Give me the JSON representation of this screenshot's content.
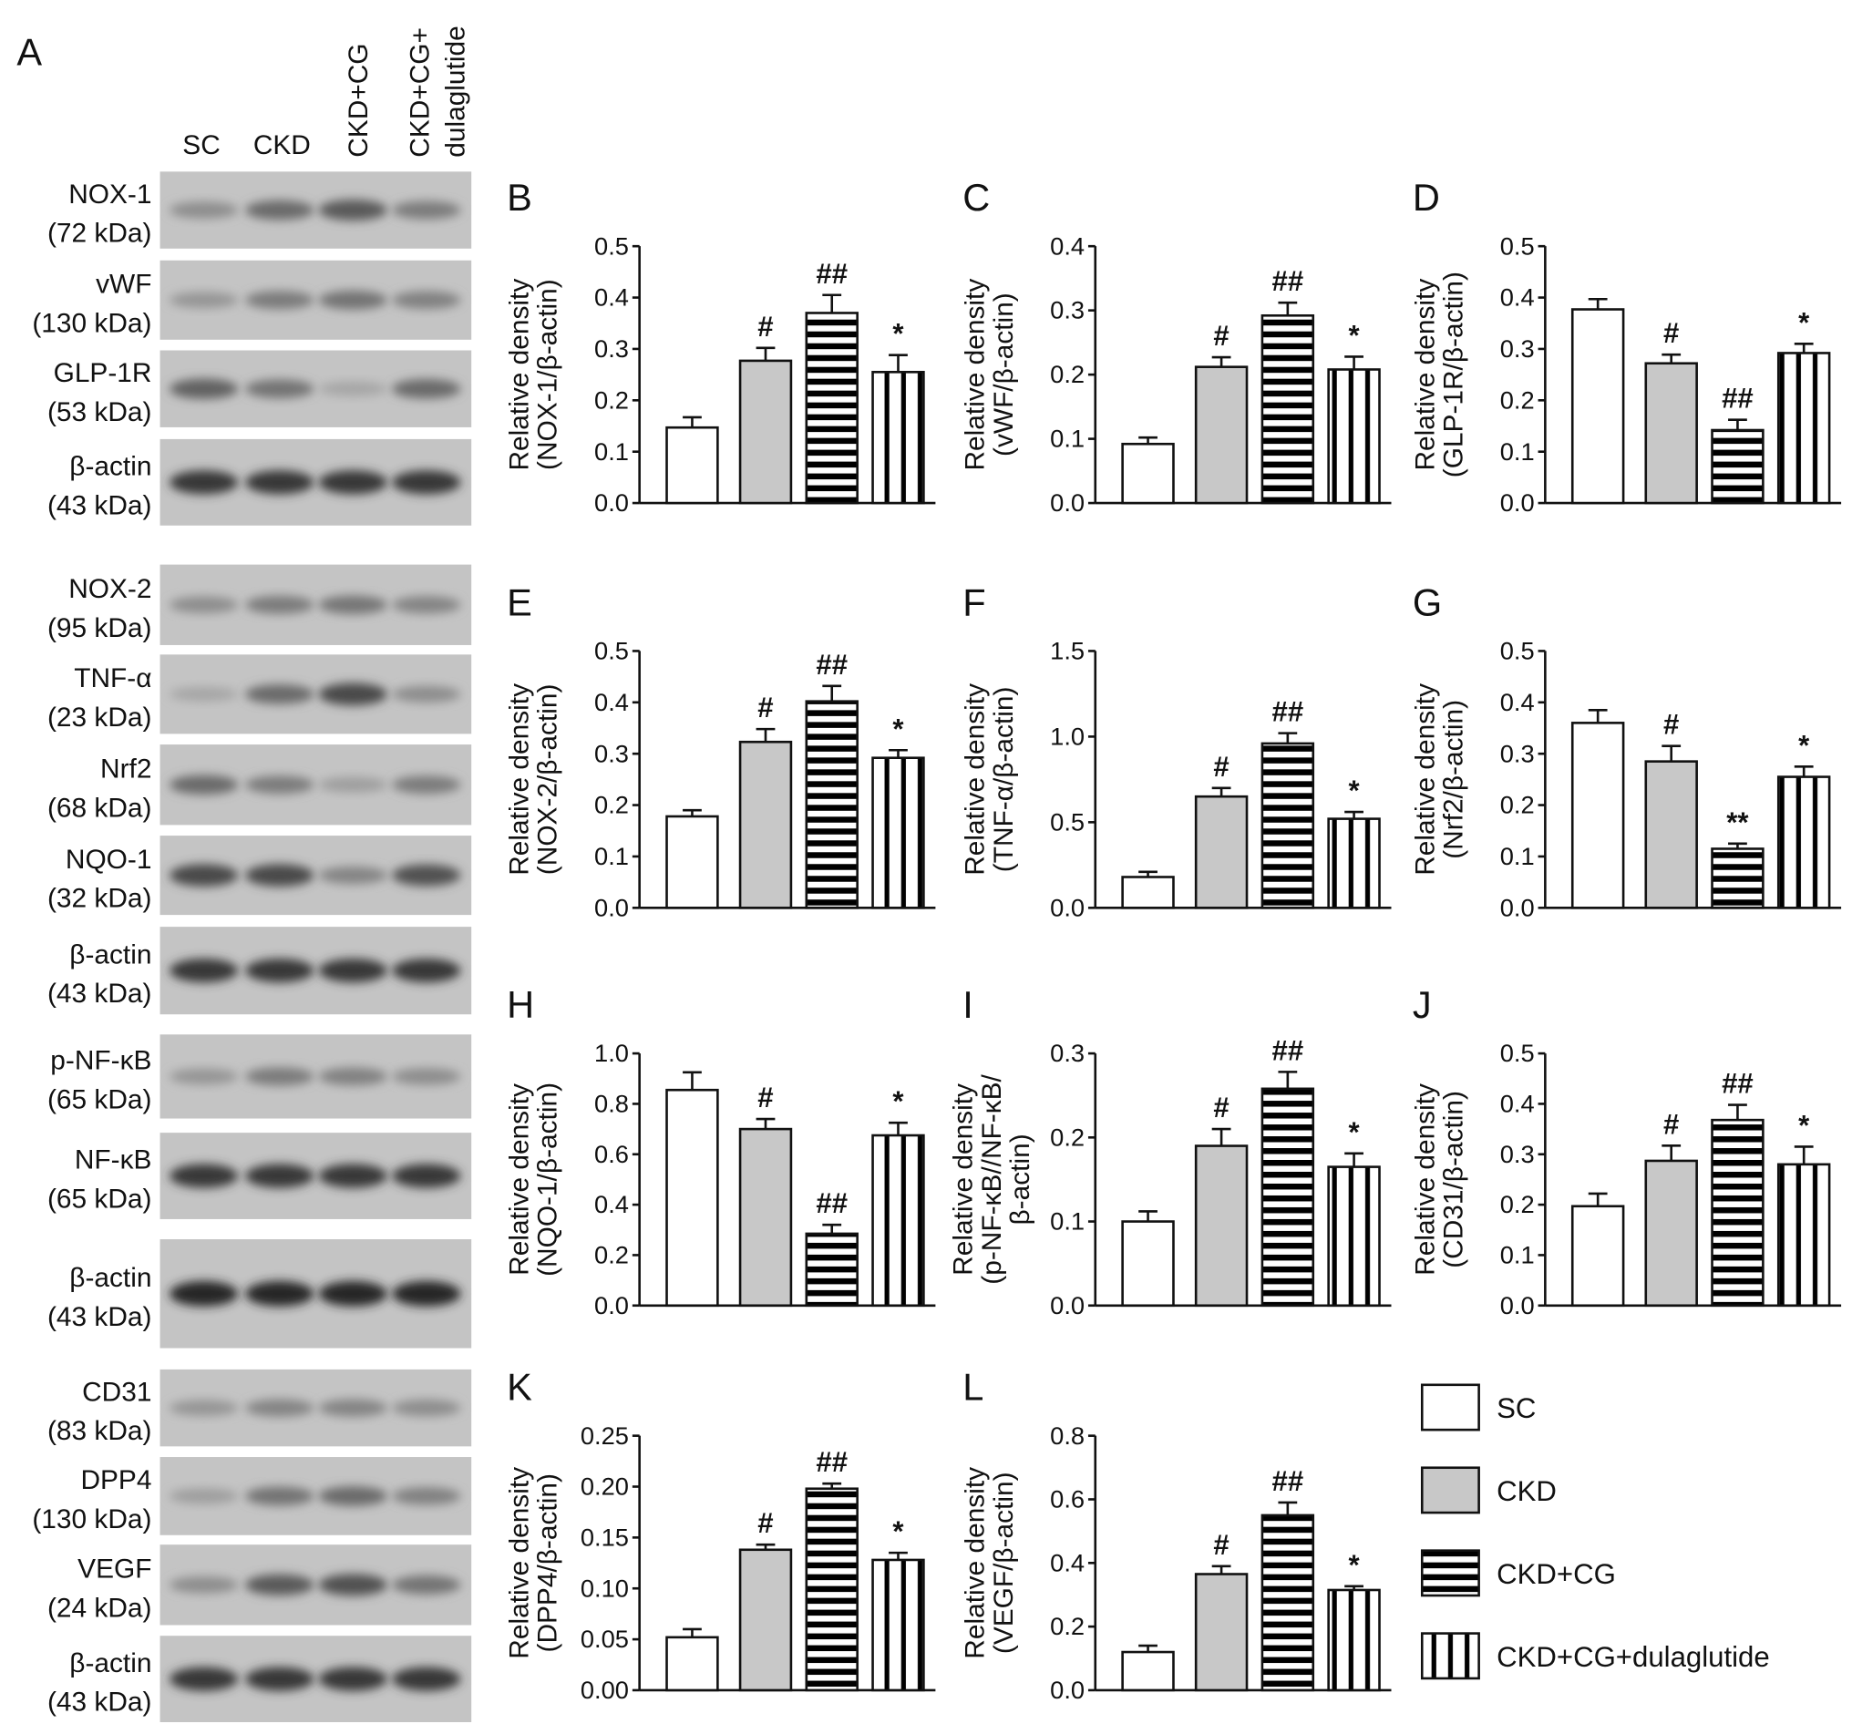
{
  "figure_letter_blot": "A",
  "lanes": [
    "SC",
    "CKD",
    "CKD+CG",
    "CKD+CG+",
    "dulaglutide"
  ],
  "blots": [
    {
      "name": "NOX-1",
      "kda": "(72 kDa)",
      "band_intensity": [
        0.35,
        0.55,
        0.65,
        0.45
      ]
    },
    {
      "name": "vWF",
      "kda": "(130 kDa)",
      "band_intensity": [
        0.3,
        0.45,
        0.5,
        0.42
      ]
    },
    {
      "name": "GLP-1R",
      "kda": "(53 kDa)",
      "band_intensity": [
        0.6,
        0.5,
        0.2,
        0.55
      ]
    },
    {
      "name": "β-actin",
      "kda": "(43 kDa)",
      "band_intensity": [
        0.85,
        0.85,
        0.85,
        0.85
      ]
    },
    {
      "name": "NOX-2",
      "kda": "(95 kDa)",
      "band_intensity": [
        0.35,
        0.45,
        0.48,
        0.4
      ]
    },
    {
      "name": "TNF-α",
      "kda": "(23 kDa)",
      "band_intensity": [
        0.2,
        0.55,
        0.75,
        0.35
      ]
    },
    {
      "name": "Nrf2",
      "kda": "(68 kDa)",
      "band_intensity": [
        0.55,
        0.45,
        0.25,
        0.45
      ]
    },
    {
      "name": "NQO-1",
      "kda": "(32 kDa)",
      "band_intensity": [
        0.75,
        0.75,
        0.4,
        0.7
      ]
    },
    {
      "name": "β-actin",
      "kda": "(43 kDa)",
      "band_intensity": [
        0.85,
        0.85,
        0.85,
        0.85
      ]
    },
    {
      "name": "p-NF-κB",
      "kda": "(65 kDa)",
      "band_intensity": [
        0.3,
        0.45,
        0.42,
        0.35
      ]
    },
    {
      "name": "NF-κB",
      "kda": "(65 kDa)",
      "band_intensity": [
        0.85,
        0.85,
        0.85,
        0.85
      ]
    },
    {
      "name": "β-actin",
      "kda": "(43 kDa)",
      "band_intensity": [
        0.95,
        0.95,
        0.95,
        0.95
      ]
    },
    {
      "name": "CD31",
      "kda": "(83 kDa)",
      "band_intensity": [
        0.3,
        0.4,
        0.4,
        0.35
      ]
    },
    {
      "name": "DPP4",
      "kda": "(130 kDa)",
      "band_intensity": [
        0.25,
        0.5,
        0.55,
        0.42
      ]
    },
    {
      "name": "VEGF",
      "kda": "(24 kDa)",
      "band_intensity": [
        0.35,
        0.65,
        0.7,
        0.5
      ]
    },
    {
      "name": "β-actin",
      "kda": "(43 kDa)",
      "band_intensity": [
        0.85,
        0.85,
        0.85,
        0.85
      ]
    }
  ],
  "legend": [
    {
      "label": "SC",
      "fill": "white"
    },
    {
      "label": "CKD",
      "fill": "gray"
    },
    {
      "label": "CKD+CG",
      "fill": "horizontal-stripes"
    },
    {
      "label": "CKD+CG+dulaglutide",
      "fill": "vertical-stripes"
    }
  ],
  "colors": {
    "ckd_fill": "#c8c8c8",
    "blot_background": "#c4c4c4",
    "ink": "#111111"
  },
  "chart_data": [
    {
      "panel": "B",
      "type": "bar",
      "categories": [
        "SC",
        "CKD",
        "CKD+CG",
        "CKD+CG+dulaglutide"
      ],
      "ylabel": [
        "Relative density",
        "(NOX-1/β-actin)"
      ],
      "ylim": [
        0,
        0.5
      ],
      "ytick_step": 0.1,
      "ytick_decimals": 1,
      "values": [
        0.147,
        0.277,
        0.37,
        0.255
      ],
      "errors": [
        0.02,
        0.025,
        0.035,
        0.033
      ],
      "significance": [
        "",
        "#",
        "##",
        "*"
      ]
    },
    {
      "panel": "C",
      "type": "bar",
      "categories": [
        "SC",
        "CKD",
        "CKD+CG",
        "CKD+CG+dulaglutide"
      ],
      "ylabel": [
        "Relative density",
        "(vWF/β-actin)"
      ],
      "ylim": [
        0,
        0.4
      ],
      "ytick_step": 0.1,
      "ytick_decimals": 1,
      "values": [
        0.092,
        0.212,
        0.292,
        0.208
      ],
      "errors": [
        0.01,
        0.015,
        0.02,
        0.02
      ],
      "significance": [
        "",
        "#",
        "##",
        "*"
      ]
    },
    {
      "panel": "D",
      "type": "bar",
      "categories": [
        "SC",
        "CKD",
        "CKD+CG",
        "CKD+CG+dulaglutide"
      ],
      "ylabel": [
        "Relative density",
        "(GLP-1R/β-actin)"
      ],
      "ylim": [
        0,
        0.5
      ],
      "ytick_step": 0.1,
      "ytick_decimals": 1,
      "values": [
        0.377,
        0.272,
        0.142,
        0.292
      ],
      "errors": [
        0.02,
        0.017,
        0.02,
        0.018
      ],
      "significance": [
        "",
        "#",
        "##",
        "*"
      ]
    },
    {
      "panel": "E",
      "type": "bar",
      "categories": [
        "SC",
        "CKD",
        "CKD+CG",
        "CKD+CG+dulaglutide"
      ],
      "ylabel": [
        "Relative density",
        "(NOX-2/β-actin)"
      ],
      "ylim": [
        0,
        0.5
      ],
      "ytick_step": 0.1,
      "ytick_decimals": 1,
      "values": [
        0.178,
        0.323,
        0.402,
        0.292
      ],
      "errors": [
        0.012,
        0.025,
        0.03,
        0.015
      ],
      "significance": [
        "",
        "#",
        "##",
        "*"
      ]
    },
    {
      "panel": "F",
      "type": "bar",
      "categories": [
        "SC",
        "CKD",
        "CKD+CG",
        "CKD+CG+dulaglutide"
      ],
      "ylabel": [
        "Relative density",
        "(TNF-α/β-actin)"
      ],
      "ylim": [
        0,
        1.5
      ],
      "ytick_step": 0.5,
      "ytick_decimals": 1,
      "values": [
        0.18,
        0.65,
        0.96,
        0.52
      ],
      "errors": [
        0.03,
        0.05,
        0.06,
        0.04
      ],
      "significance": [
        "",
        "#",
        "##",
        "*"
      ]
    },
    {
      "panel": "G",
      "type": "bar",
      "categories": [
        "SC",
        "CKD",
        "CKD+CG",
        "CKD+CG+dulaglutide"
      ],
      "ylabel": [
        "Relative density",
        "(Nrf2/β-actin)"
      ],
      "ylim": [
        0,
        0.5
      ],
      "ytick_step": 0.1,
      "ytick_decimals": 1,
      "values": [
        0.36,
        0.285,
        0.115,
        0.255
      ],
      "errors": [
        0.025,
        0.03,
        0.01,
        0.02
      ],
      "significance": [
        "",
        "#",
        "**",
        "*"
      ]
    },
    {
      "panel": "H",
      "type": "bar",
      "categories": [
        "SC",
        "CKD",
        "CKD+CG",
        "CKD+CG+dulaglutide"
      ],
      "ylabel": [
        "Relative density",
        "(NQO-1/β-actin)"
      ],
      "ylim": [
        0,
        1.0
      ],
      "ytick_step": 0.2,
      "ytick_decimals": 1,
      "values": [
        0.855,
        0.7,
        0.285,
        0.675
      ],
      "errors": [
        0.07,
        0.04,
        0.035,
        0.05
      ],
      "significance": [
        "",
        "#",
        "##",
        "*"
      ]
    },
    {
      "panel": "I",
      "type": "bar",
      "categories": [
        "SC",
        "CKD",
        "CKD+CG",
        "CKD+CG+dulaglutide"
      ],
      "ylabel": [
        "Relative density",
        "(p-NF-κB//NF-κB/",
        "β-actin)"
      ],
      "ylim": [
        0,
        0.3
      ],
      "ytick_step": 0.1,
      "ytick_decimals": 1,
      "values": [
        0.1,
        0.19,
        0.258,
        0.165
      ],
      "errors": [
        0.012,
        0.02,
        0.02,
        0.016
      ],
      "significance": [
        "",
        "#",
        "##",
        "*"
      ]
    },
    {
      "panel": "J",
      "type": "bar",
      "categories": [
        "SC",
        "CKD",
        "CKD+CG",
        "CKD+CG+dulaglutide"
      ],
      "ylabel": [
        "Relative density",
        "(CD31/β-actin)"
      ],
      "ylim": [
        0,
        0.5
      ],
      "ytick_step": 0.1,
      "ytick_decimals": 1,
      "values": [
        0.197,
        0.287,
        0.368,
        0.28
      ],
      "errors": [
        0.025,
        0.03,
        0.03,
        0.035
      ],
      "significance": [
        "",
        "#",
        "##",
        "*"
      ]
    },
    {
      "panel": "K",
      "type": "bar",
      "categories": [
        "SC",
        "CKD",
        "CKD+CG",
        "CKD+CG+dulaglutide"
      ],
      "ylabel": [
        "Relative density",
        "(DPP4/β-actin)"
      ],
      "ylim": [
        0,
        0.25
      ],
      "ytick_step": 0.05,
      "ytick_decimals": 2,
      "values": [
        0.052,
        0.138,
        0.198,
        0.128
      ],
      "errors": [
        0.008,
        0.005,
        0.005,
        0.007
      ],
      "significance": [
        "",
        "#",
        "##",
        "*"
      ]
    },
    {
      "panel": "L",
      "type": "bar",
      "categories": [
        "SC",
        "CKD",
        "CKD+CG",
        "CKD+CG+dulaglutide"
      ],
      "ylabel": [
        "Relative density",
        "(VEGF/β-actin)"
      ],
      "ylim": [
        0,
        0.8
      ],
      "ytick_step": 0.2,
      "ytick_decimals": 1,
      "values": [
        0.12,
        0.365,
        0.55,
        0.315
      ],
      "errors": [
        0.02,
        0.025,
        0.04,
        0.012
      ],
      "significance": [
        "",
        "#",
        "##",
        "*"
      ]
    }
  ]
}
